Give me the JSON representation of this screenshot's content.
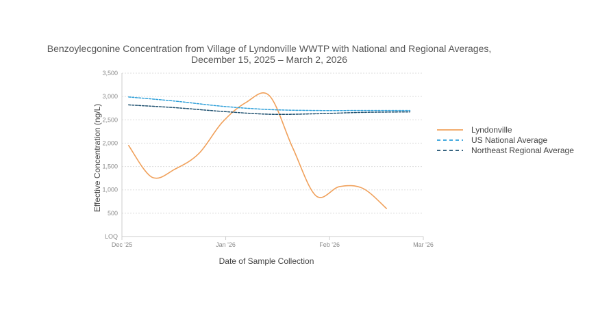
{
  "chart_data": {
    "type": "line",
    "title_lines": [
      "Benzoylecgonine Concentration from Village of Lyndonville WWTP with National and Regional Averages,",
      "December 15, 2025 – March 2, 2026"
    ],
    "xlabel": "Date of Sample Collection",
    "ylabel": "Effective Concentration (ng/L)",
    "x_range": [
      "2025-12-01",
      "2026-03-01"
    ],
    "ylim": [
      0,
      3500
    ],
    "y_ticks": [
      {
        "value": 0,
        "label": "LOQ"
      },
      {
        "value": 500,
        "label": "500"
      },
      {
        "value": 1000,
        "label": "1,000"
      },
      {
        "value": 1500,
        "label": "1,500"
      },
      {
        "value": 2000,
        "label": "2,000"
      },
      {
        "value": 2500,
        "label": "2,500"
      },
      {
        "value": 3000,
        "label": "3,000"
      },
      {
        "value": 3500,
        "label": "3,500"
      }
    ],
    "x_ticks": [
      {
        "date": "2025-12-01",
        "label": "Dec '25"
      },
      {
        "date": "2026-01-01",
        "label": "Jan '26"
      },
      {
        "date": "2026-02-01",
        "label": "Feb '26"
      },
      {
        "date": "2026-03-01",
        "label": "Mar '26"
      }
    ],
    "grid": true,
    "legend_position": "right",
    "series": [
      {
        "name": "Lyndonville",
        "color": "#f0a05a",
        "dash": "solid",
        "points": [
          {
            "x": "2025-12-03",
            "y": 1950
          },
          {
            "x": "2025-12-10",
            "y": 1270
          },
          {
            "x": "2025-12-17",
            "y": 1450
          },
          {
            "x": "2025-12-24",
            "y": 1780
          },
          {
            "x": "2025-12-31",
            "y": 2450
          },
          {
            "x": "2026-01-07",
            "y": 2870
          },
          {
            "x": "2026-01-14",
            "y": 3020
          },
          {
            "x": "2026-01-21",
            "y": 1900
          },
          {
            "x": "2026-01-28",
            "y": 870
          },
          {
            "x": "2026-02-04",
            "y": 1070
          },
          {
            "x": "2026-02-11",
            "y": 1030
          },
          {
            "x": "2026-02-18",
            "y": 600
          }
        ]
      },
      {
        "name": "US National Average",
        "color": "#2d9fd9",
        "dash": "dashed",
        "points": [
          {
            "x": "2025-12-03",
            "y": 2990
          },
          {
            "x": "2025-12-17",
            "y": 2900
          },
          {
            "x": "2025-12-31",
            "y": 2790
          },
          {
            "x": "2026-01-14",
            "y": 2720
          },
          {
            "x": "2026-01-28",
            "y": 2700
          },
          {
            "x": "2026-02-11",
            "y": 2700
          },
          {
            "x": "2026-02-25",
            "y": 2700
          }
        ]
      },
      {
        "name": "Northeast Regional Average",
        "color": "#1d4f6e",
        "dash": "dashed",
        "points": [
          {
            "x": "2025-12-03",
            "y": 2820
          },
          {
            "x": "2025-12-17",
            "y": 2760
          },
          {
            "x": "2025-12-31",
            "y": 2680
          },
          {
            "x": "2026-01-14",
            "y": 2620
          },
          {
            "x": "2026-01-28",
            "y": 2630
          },
          {
            "x": "2026-02-11",
            "y": 2660
          },
          {
            "x": "2026-02-25",
            "y": 2670
          }
        ]
      }
    ]
  }
}
